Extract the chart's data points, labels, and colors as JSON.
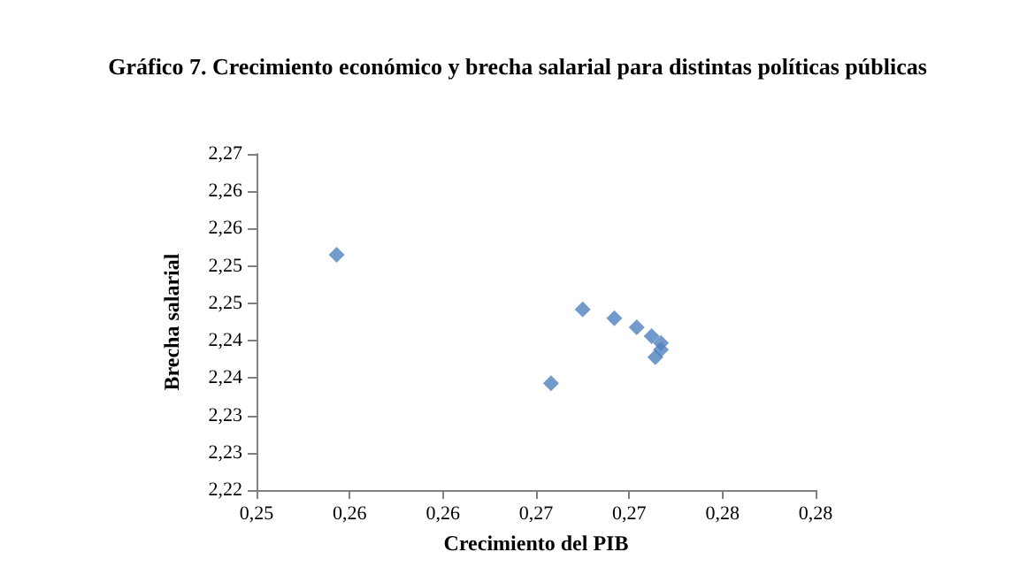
{
  "chart_data": {
    "type": "scatter",
    "title": "Gráfico 7. Crecimiento económico y brecha salarial para distintas políticas públicas",
    "xlabel": "Crecimiento del PIB",
    "ylabel": "Brecha salarial",
    "x": [
      0.2543,
      0.2658,
      0.2675,
      0.2692,
      0.2704,
      0.2712,
      0.2717,
      0.2717,
      0.2714
    ],
    "values": [
      2.2515,
      2.2343,
      2.2442,
      2.243,
      2.2418,
      2.2406,
      2.2397,
      2.2388,
      2.2378
    ],
    "color": "#4f81bd",
    "marker": "diamond",
    "grid": false,
    "xlim": [
      0.25,
      0.28
    ],
    "xticks": [
      {
        "value": 0.25,
        "label": "0,25"
      },
      {
        "value": 0.255,
        "label": "0,26"
      },
      {
        "value": 0.26,
        "label": "0,26"
      },
      {
        "value": 0.265,
        "label": "0,27"
      },
      {
        "value": 0.27,
        "label": "0,27"
      },
      {
        "value": 0.275,
        "label": "0,28"
      },
      {
        "value": 0.28,
        "label": "0,28"
      }
    ],
    "ylim": [
      2.22,
      2.265
    ],
    "yticks": [
      {
        "value": 2.22,
        "label": "2,22"
      },
      {
        "value": 2.225,
        "label": "2,23"
      },
      {
        "value": 2.23,
        "label": "2,23"
      },
      {
        "value": 2.235,
        "label": "2,24"
      },
      {
        "value": 2.24,
        "label": "2,24"
      },
      {
        "value": 2.245,
        "label": "2,25"
      },
      {
        "value": 2.25,
        "label": "2,25"
      },
      {
        "value": 2.255,
        "label": "2,26"
      },
      {
        "value": 2.26,
        "label": "2,26"
      },
      {
        "value": 2.265,
        "label": "2,27"
      }
    ]
  }
}
